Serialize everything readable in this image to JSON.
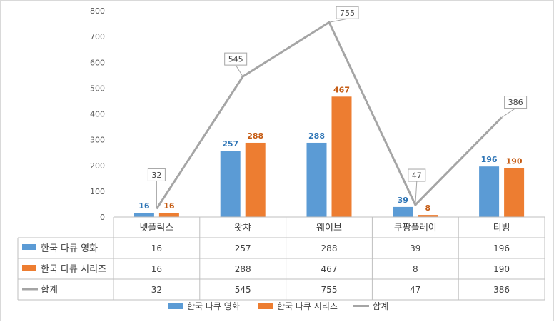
{
  "chart_data": {
    "type": "bar",
    "categories": [
      "넷플릭스",
      "왓챠",
      "웨이브",
      "쿠팡플레이",
      "티빙"
    ],
    "series": [
      {
        "name": "한국 다큐 영화",
        "type": "bar",
        "color": "#5B9BD5",
        "label_color": "#2E75B6",
        "values": [
          16,
          257,
          288,
          39,
          196
        ]
      },
      {
        "name": "한국 다큐 시리즈",
        "type": "bar",
        "color": "#ED7D31",
        "label_color": "#C55A11",
        "values": [
          16,
          288,
          467,
          8,
          190
        ]
      },
      {
        "name": "합계",
        "type": "line",
        "color": "#A5A5A5",
        "values": [
          32,
          545,
          755,
          47,
          386
        ]
      }
    ],
    "y_ticks": [
      "0",
      "100",
      "200",
      "300",
      "400",
      "500",
      "600",
      "700",
      "800"
    ],
    "ylim": [
      0,
      800
    ],
    "grid": false,
    "data_table": true,
    "legend": "bottom"
  }
}
